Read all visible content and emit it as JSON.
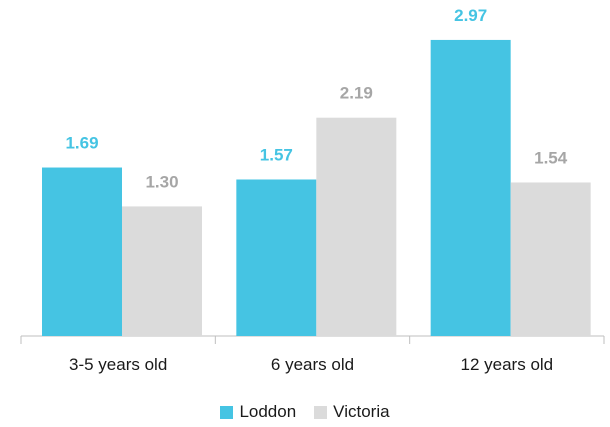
{
  "chart_data": {
    "type": "bar",
    "categories": [
      "3-5 years old",
      "6 years old",
      "12 years old"
    ],
    "series": [
      {
        "name": "Loddon",
        "values": [
          1.69,
          1.57,
          2.97
        ],
        "labels": [
          "1.69",
          "1.57",
          "2.97"
        ],
        "color": "#45c4e3",
        "label_color": "#45c4e3"
      },
      {
        "name": "Victoria",
        "values": [
          1.3,
          2.19,
          1.54
        ],
        "labels": [
          "1.30",
          "2.19",
          "1.54"
        ],
        "color": "#dbdbdb",
        "label_color": "#a6a6a6"
      }
    ],
    "title": "",
    "xlabel": "",
    "ylabel": "",
    "ylim": [
      0,
      3.2
    ],
    "grid": false,
    "legend_position": "bottom"
  }
}
